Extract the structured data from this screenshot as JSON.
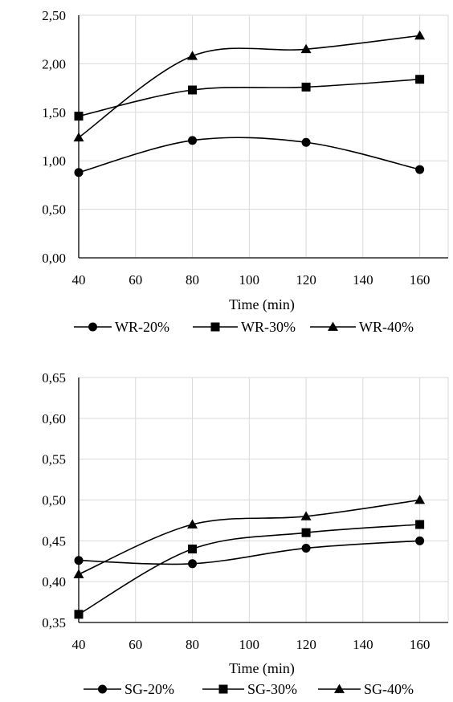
{
  "chart_data": [
    {
      "type": "line",
      "x": [
        40,
        80,
        120,
        160
      ],
      "series": [
        {
          "name": "WR-20%",
          "marker": "circle",
          "values": [
            0.88,
            1.21,
            1.19,
            0.91
          ]
        },
        {
          "name": "WR-30%",
          "marker": "square",
          "values": [
            1.46,
            1.73,
            1.76,
            1.84
          ]
        },
        {
          "name": "WR-40%",
          "marker": "triangle",
          "values": [
            1.24,
            2.08,
            2.15,
            2.29
          ]
        }
      ],
      "xlabel": "Time (min)",
      "ylabel": "",
      "xlim": [
        40,
        170
      ],
      "ylim": [
        0,
        2.5
      ],
      "xticks": [
        40,
        60,
        80,
        100,
        120,
        140,
        160
      ],
      "yticks": [
        "0,00",
        "0,50",
        "1,00",
        "1,50",
        "2,00",
        "2,50"
      ],
      "grid": true,
      "smooth": true,
      "legend": "bottom",
      "color": "#000000"
    },
    {
      "type": "line",
      "x": [
        40,
        80,
        120,
        160
      ],
      "series": [
        {
          "name": "SG-20%",
          "marker": "circle",
          "values": [
            0.426,
            0.422,
            0.441,
            0.45
          ]
        },
        {
          "name": "SG-30%",
          "marker": "square",
          "values": [
            0.36,
            0.44,
            0.46,
            0.47
          ]
        },
        {
          "name": "SG-40%",
          "marker": "triangle",
          "values": [
            0.409,
            0.47,
            0.48,
            0.5
          ]
        }
      ],
      "xlabel": "Time (min)",
      "ylabel": "",
      "xlim": [
        40,
        170
      ],
      "ylim": [
        0.35,
        0.65
      ],
      "xticks": [
        40,
        60,
        80,
        100,
        120,
        140,
        160
      ],
      "yticks": [
        "0,35",
        "0,40",
        "0,45",
        "0,50",
        "0,55",
        "0,60",
        "0,65"
      ],
      "grid": true,
      "smooth": true,
      "legend": "bottom",
      "color": "#000000"
    }
  ]
}
